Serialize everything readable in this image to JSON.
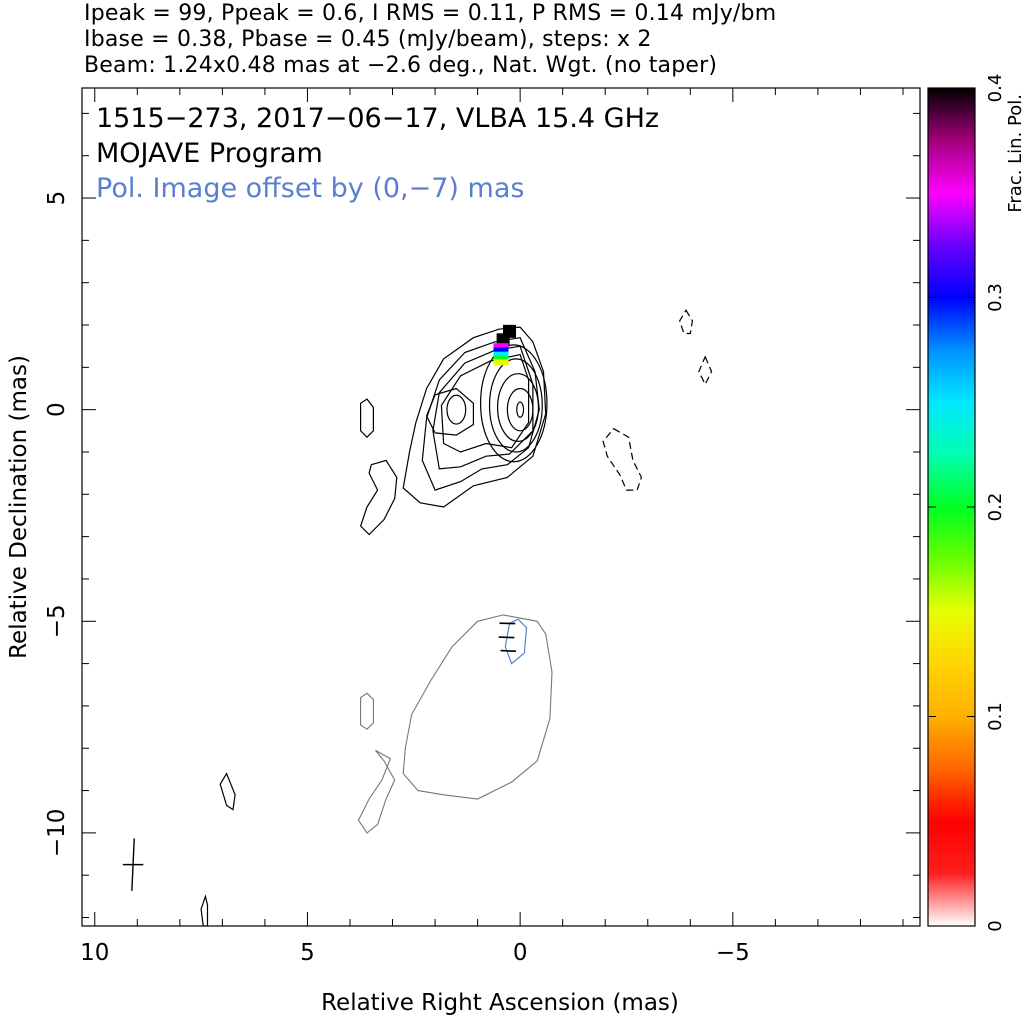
{
  "header": {
    "line1": "Ipeak = 99, Ppeak = 0.6, I RMS = 0.11, P RMS = 0.14 mJy/bm",
    "line2": "Ibase = 0.38, Pbase = 0.45 (mJy/beam), steps: x 2",
    "line3": "Beam: 1.24x0.48 mas at −2.6 deg., Nat. Wgt. (no taper)"
  },
  "chart_data": {
    "type": "contour",
    "title_line1": "1515−273, 2017−06−17, VLBA 15.4 GHz",
    "title_line2": "MOJAVE Program",
    "annotation": "Pol. Image offset by (0,−7) mas",
    "xlabel": "Relative Right Ascension (mas)",
    "ylabel": "Relative Declination (mas)",
    "xlim": [
      10.3,
      -9.4
    ],
    "ylim": [
      -12.2,
      7.6
    ],
    "x_ticks": [
      10,
      5,
      0,
      -5
    ],
    "x_tick_labels": [
      "10",
      "5",
      "0",
      "−5"
    ],
    "y_ticks": [
      5,
      0,
      -5,
      -10
    ],
    "y_tick_labels": [
      "5",
      "0",
      "−5",
      "−10"
    ],
    "colorbar": {
      "label": "Frac. Lin. Pol.",
      "range": [
        0,
        0.4
      ],
      "ticks": [
        0,
        0.1,
        0.2,
        0.3,
        0.4
      ],
      "tick_labels": [
        "0",
        "0.1",
        "0.2",
        "0.3",
        "0.4"
      ],
      "colormap": [
        "#ffffff",
        "#ff1e1e",
        "#ff0000",
        "#ff6600",
        "#ffb000",
        "#ffd400",
        "#e8ff00",
        "#66ff00",
        "#00ff22",
        "#00ffb0",
        "#00e8ff",
        "#0090ff",
        "#0000ff",
        "#6a00ff",
        "#ff00ff",
        "#a0007a",
        "#000000"
      ]
    },
    "beam": {
      "major_mas": 1.24,
      "minor_mas": 0.48,
      "pa_deg": -2.6,
      "center": [
        9.1,
        -10.75
      ]
    },
    "intensity_contours": [
      {
        "cx": 0.0,
        "cy": 0.0,
        "rx": 0.08,
        "ry": 0.18
      },
      {
        "cx": 0.0,
        "cy": 0.0,
        "rx": 0.3,
        "ry": 0.5
      },
      {
        "cx": 0.05,
        "cy": 0.05,
        "rx": 0.48,
        "ry": 0.8
      },
      {
        "cx": 0.1,
        "cy": 0.1,
        "rx": 0.62,
        "ry": 1.1
      },
      {
        "cx": 0.15,
        "cy": 0.15,
        "rx": 0.78,
        "ry": 1.38
      },
      {
        "cx": 1.5,
        "cy": 0.0,
        "rx": 0.22,
        "ry": 0.34
      }
    ],
    "intensity_outlines": [
      [
        [
          0.0,
          1.95
        ],
        [
          0.5,
          1.9
        ],
        [
          1.1,
          1.7
        ],
        [
          1.8,
          1.2
        ],
        [
          2.2,
          0.5
        ],
        [
          2.45,
          -0.3
        ],
        [
          2.6,
          -1.0
        ],
        [
          2.75,
          -1.85
        ],
        [
          2.35,
          -2.2
        ],
        [
          1.8,
          -2.3
        ],
        [
          1.1,
          -1.8
        ],
        [
          0.3,
          -1.6
        ],
        [
          -0.3,
          -1.1
        ],
        [
          -0.6,
          -0.1
        ],
        [
          -0.55,
          0.9
        ],
        [
          -0.3,
          1.6
        ],
        [
          0.0,
          1.95
        ]
      ],
      [
        [
          0.0,
          1.7
        ],
        [
          0.6,
          1.6
        ],
        [
          1.3,
          1.35
        ],
        [
          1.9,
          0.7
        ],
        [
          2.2,
          -0.2
        ],
        [
          2.3,
          -1.2
        ],
        [
          2.0,
          -1.9
        ],
        [
          1.4,
          -1.7
        ],
        [
          0.9,
          -1.4
        ],
        [
          0.3,
          -1.3
        ],
        [
          -0.2,
          -0.9
        ],
        [
          -0.45,
          0.0
        ],
        [
          -0.35,
          0.9
        ],
        [
          0.0,
          1.7
        ]
      ],
      [
        [
          0.0,
          1.5
        ],
        [
          0.6,
          1.4
        ],
        [
          1.3,
          1.1
        ],
        [
          1.9,
          0.4
        ],
        [
          2.05,
          -0.5
        ],
        [
          1.9,
          -1.4
        ],
        [
          1.4,
          -1.35
        ],
        [
          0.8,
          -1.1
        ],
        [
          0.25,
          -1.05
        ],
        [
          -0.3,
          -0.5
        ],
        [
          -0.3,
          0.6
        ],
        [
          0.0,
          1.5
        ]
      ],
      [
        [
          0.0,
          1.3
        ],
        [
          0.7,
          1.15
        ],
        [
          1.4,
          0.8
        ],
        [
          1.85,
          0.1
        ],
        [
          1.8,
          -0.8
        ],
        [
          1.4,
          -1.0
        ],
        [
          0.8,
          -0.8
        ],
        [
          0.2,
          -0.9
        ],
        [
          -0.2,
          -0.3
        ],
        [
          -0.2,
          0.7
        ],
        [
          0.0,
          1.3
        ]
      ],
      [
        [
          1.5,
          0.5
        ],
        [
          2.0,
          0.35
        ],
        [
          2.2,
          -0.15
        ],
        [
          2.0,
          -0.55
        ],
        [
          1.5,
          -0.6
        ],
        [
          1.1,
          -0.35
        ],
        [
          1.1,
          0.15
        ],
        [
          1.5,
          0.5
        ]
      ],
      [
        [
          3.5,
          -1.3
        ],
        [
          3.15,
          -1.2
        ],
        [
          2.9,
          -1.6
        ],
        [
          2.95,
          -2.1
        ],
        [
          3.2,
          -2.6
        ],
        [
          3.55,
          -2.95
        ],
        [
          3.75,
          -2.75
        ],
        [
          3.6,
          -2.3
        ],
        [
          3.35,
          -1.9
        ],
        [
          3.55,
          -1.5
        ],
        [
          3.5,
          -1.3
        ]
      ],
      [
        [
          3.6,
          0.25
        ],
        [
          3.75,
          0.15
        ],
        [
          3.75,
          -0.5
        ],
        [
          3.6,
          -0.65
        ],
        [
          3.45,
          -0.5
        ],
        [
          3.45,
          0.05
        ],
        [
          3.6,
          0.25
        ]
      ],
      [
        [
          6.9,
          -8.6
        ],
        [
          7.05,
          -8.85
        ],
        [
          6.9,
          -9.35
        ],
        [
          6.75,
          -9.45
        ],
        [
          6.7,
          -9.1
        ],
        [
          6.9,
          -8.6
        ]
      ],
      [
        [
          7.4,
          -11.5
        ],
        [
          7.5,
          -11.8
        ],
        [
          7.45,
          -12.2
        ],
        [
          7.35,
          -12.2
        ],
        [
          7.35,
          -11.7
        ],
        [
          7.4,
          -11.5
        ]
      ]
    ],
    "negative_contours": [
      [
        [
          -3.9,
          2.35
        ],
        [
          -4.05,
          2.1
        ],
        [
          -4.0,
          1.8
        ],
        [
          -3.85,
          1.8
        ],
        [
          -3.75,
          2.1
        ],
        [
          -3.9,
          2.35
        ]
      ],
      [
        [
          -4.35,
          1.25
        ],
        [
          -4.5,
          0.9
        ],
        [
          -4.35,
          0.6
        ],
        [
          -4.2,
          0.9
        ],
        [
          -4.35,
          1.25
        ]
      ],
      [
        [
          -2.2,
          -0.45
        ],
        [
          -2.55,
          -0.65
        ],
        [
          -2.65,
          -1.2
        ],
        [
          -2.85,
          -1.6
        ],
        [
          -2.75,
          -1.9
        ],
        [
          -2.5,
          -1.9
        ],
        [
          -2.35,
          -1.55
        ],
        [
          -2.05,
          -1.1
        ],
        [
          -1.95,
          -0.75
        ],
        [
          -2.2,
          -0.45
        ]
      ]
    ],
    "polarized_contours": [
      [
        [
          0.4,
          -4.85
        ],
        [
          -0.4,
          -5.0
        ],
        [
          -0.6,
          -5.3
        ],
        [
          -0.75,
          -6.2
        ],
        [
          -0.7,
          -7.3
        ],
        [
          -0.4,
          -8.3
        ],
        [
          0.2,
          -8.8
        ],
        [
          1.0,
          -9.2
        ],
        [
          1.8,
          -9.1
        ],
        [
          2.4,
          -9.0
        ],
        [
          2.75,
          -8.6
        ],
        [
          2.7,
          -8.0
        ],
        [
          2.55,
          -7.2
        ],
        [
          2.1,
          -6.4
        ],
        [
          1.6,
          -5.6
        ],
        [
          1.0,
          -5.0
        ],
        [
          0.4,
          -4.85
        ]
      ],
      [
        [
          3.4,
          -8.05
        ],
        [
          3.05,
          -8.25
        ],
        [
          3.25,
          -8.75
        ],
        [
          3.55,
          -9.2
        ],
        [
          3.8,
          -9.7
        ],
        [
          3.6,
          -10.0
        ],
        [
          3.35,
          -9.8
        ],
        [
          3.15,
          -9.2
        ],
        [
          2.95,
          -8.75
        ],
        [
          3.2,
          -8.3
        ],
        [
          3.4,
          -8.05
        ]
      ],
      [
        [
          3.6,
          -6.7
        ],
        [
          3.75,
          -6.8
        ],
        [
          3.75,
          -7.45
        ],
        [
          3.6,
          -7.55
        ],
        [
          3.45,
          -7.4
        ],
        [
          3.45,
          -6.85
        ],
        [
          3.6,
          -6.7
        ]
      ]
    ],
    "polarized_inner_contour": [
      [
        0.35,
        -5.6
      ],
      [
        0.25,
        -5.05
      ],
      [
        0.05,
        -4.95
      ],
      [
        -0.15,
        -5.15
      ],
      [
        -0.1,
        -5.75
      ],
      [
        0.2,
        -6.0
      ],
      [
        0.35,
        -5.6
      ]
    ],
    "evpa_ticks": [
      {
        "x": 0.3,
        "y": -5.05,
        "angle_deg": 80
      },
      {
        "x": 0.32,
        "y": -5.38,
        "angle_deg": 78
      },
      {
        "x": 0.28,
        "y": -5.7,
        "angle_deg": 75
      }
    ],
    "fractional_pol_pixels": [
      {
        "x": 0.25,
        "y": 1.85,
        "value": 0.4
      },
      {
        "x": 0.4,
        "y": 1.65,
        "value": 0.4
      },
      {
        "x": 0.45,
        "y": 1.5,
        "value": 0.34
      },
      {
        "x": 0.45,
        "y": 1.4,
        "value": 0.29
      },
      {
        "x": 0.45,
        "y": 1.3,
        "value": 0.24
      },
      {
        "x": 0.45,
        "y": 1.2,
        "value": 0.19
      },
      {
        "x": 0.45,
        "y": 1.12,
        "value": 0.15
      }
    ],
    "colors": {
      "polarized_contour": "#777777",
      "pol_inner_contour": "#5a7fd0",
      "annotation": "#5a7fd0"
    }
  }
}
